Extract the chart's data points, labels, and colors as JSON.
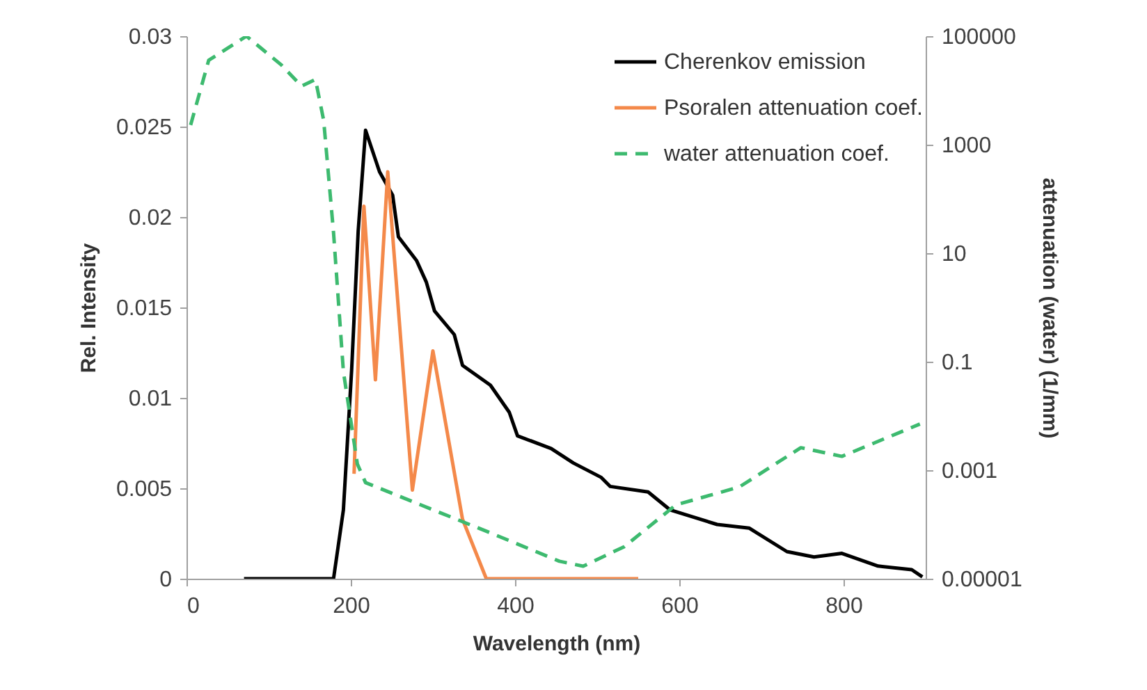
{
  "chart_data": {
    "type": "line",
    "xlabel": "Wavelength (nm)",
    "ylabel": "Rel. Intensity",
    "y2label": "attenuation (water)  (1/mm)",
    "xlim": [
      0,
      900
    ],
    "xticks": [
      0,
      200,
      400,
      600,
      800
    ],
    "ylim": [
      0,
      0.03
    ],
    "yticks": [
      0,
      0.005,
      0.01,
      0.015,
      0.02,
      0.025,
      0.03
    ],
    "y2lim": [
      1e-05,
      100000
    ],
    "y2ticks": [
      {
        "value": 1e-05,
        "label": "0.00001"
      },
      0.001,
      0.1,
      10,
      1000,
      100000
    ],
    "log": "y2",
    "grid": false,
    "legend": "top right",
    "series": [
      {
        "name": "Cherenkov emission",
        "color": "#000000",
        "line_style": "solid",
        "x": [
          70,
          179,
          191,
          201,
          209,
          218,
          235,
          251,
          258,
          280,
          292,
          302,
          326,
          336,
          370,
          393,
          403,
          444,
          471,
          505,
          516,
          562,
          589,
          646,
          685,
          731,
          764,
          798,
          842,
          883,
          896
        ],
        "values": [
          0,
          0,
          0.0038,
          0.0115,
          0.0192,
          0.0248,
          0.0225,
          0.0212,
          0.0189,
          0.0176,
          0.0164,
          0.0148,
          0.0135,
          0.0118,
          0.0107,
          0.0092,
          0.0079,
          0.0072,
          0.0064,
          0.0056,
          0.0051,
          0.0048,
          0.0038,
          0.003,
          0.0028,
          0.0015,
          0.0012,
          0.0014,
          0.0007,
          0.0005,
          0.0001
        ]
      },
      {
        "name": "Psoralen attenuation coef.",
        "color": "#f4894a",
        "line_style": "solid",
        "x": [
          204,
          216,
          230,
          245,
          275,
          300,
          336,
          365,
          550
        ],
        "values": [
          0.0058,
          0.0206,
          0.011,
          0.0225,
          0.0049,
          0.0126,
          0.0033,
          0,
          0
        ]
      },
      {
        "name": "water attenuation coef.",
        "color": "#3dba6f",
        "line_style": "dashed",
        "axis": "y2",
        "x": [
          5,
          27,
          73,
          116,
          140,
          157,
          167,
          179,
          191,
          208,
          218,
          285,
          370,
          454,
          483,
          533,
          596,
          673,
          748,
          798,
          893
        ],
        "values": [
          2300,
          36000,
          100000,
          29000,
          12000,
          16000,
          2800,
          24,
          0.066,
          0.0013,
          0.00059,
          0.00023,
          7e-05,
          2.1e-05,
          1.7e-05,
          3.9e-05,
          0.00023,
          0.00049,
          0.0026,
          0.0018,
          0.0071
        ]
      }
    ]
  }
}
